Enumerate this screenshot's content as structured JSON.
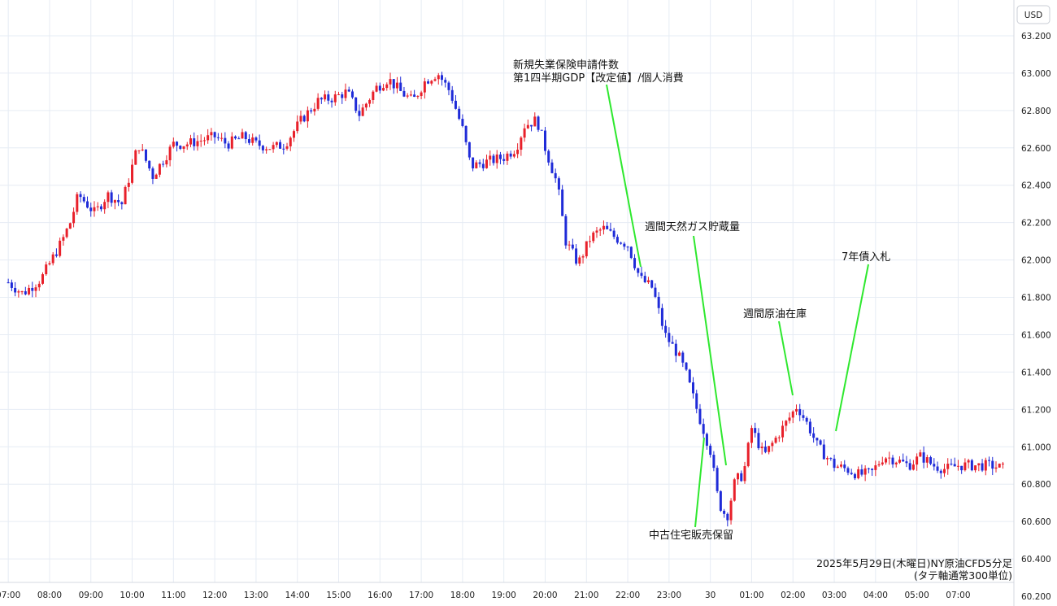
{
  "chart_data": {
    "type": "candlestick",
    "currency": "USD",
    "ylim": [
      60.2,
      63.3
    ],
    "y_ticks": [
      "60.200",
      "60.400",
      "60.600",
      "60.800",
      "61.000",
      "61.200",
      "61.400",
      "61.600",
      "61.800",
      "62.000",
      "62.200",
      "62.400",
      "62.600",
      "62.800",
      "63.000",
      "63.200"
    ],
    "x_ticks": [
      "07:00",
      "08:00",
      "09:00",
      "10:00",
      "11:00",
      "12:00",
      "13:00",
      "14:00",
      "15:00",
      "16:00",
      "17:00",
      "18:00",
      "19:00",
      "20:00",
      "21:00",
      "22:00",
      "23:00",
      "30",
      "01:00",
      "02:00",
      "03:00",
      "04:00",
      "05:00",
      "07:00"
    ],
    "x_range_hours": [
      -0.2,
      24.35
    ],
    "up_color": "#e8202a",
    "down_color": "#1f2bd8",
    "anchors": [
      [
        0.0,
        61.88
      ],
      [
        0.35,
        61.82
      ],
      [
        0.8,
        61.9
      ],
      [
        1.3,
        62.1
      ],
      [
        1.5,
        62.2
      ],
      [
        1.7,
        62.35
      ],
      [
        2.1,
        62.25
      ],
      [
        2.4,
        62.35
      ],
      [
        2.75,
        62.3
      ],
      [
        3.0,
        62.5
      ],
      [
        3.15,
        62.62
      ],
      [
        3.5,
        62.45
      ],
      [
        4.0,
        62.62
      ],
      [
        4.3,
        62.62
      ],
      [
        5.0,
        62.66
      ],
      [
        5.3,
        62.62
      ],
      [
        5.7,
        62.66
      ],
      [
        6.0,
        62.62
      ],
      [
        6.4,
        62.6
      ],
      [
        6.7,
        62.62
      ],
      [
        7.1,
        62.75
      ],
      [
        7.5,
        62.85
      ],
      [
        7.9,
        62.87
      ],
      [
        8.2,
        62.9
      ],
      [
        8.5,
        62.78
      ],
      [
        8.9,
        62.92
      ],
      [
        9.2,
        62.97
      ],
      [
        9.5,
        62.9
      ],
      [
        9.8,
        62.85
      ],
      [
        10.1,
        62.96
      ],
      [
        10.4,
        63.0
      ],
      [
        10.7,
        62.9
      ],
      [
        11.0,
        62.7
      ],
      [
        11.2,
        62.5
      ],
      [
        11.5,
        62.52
      ],
      [
        12.0,
        62.55
      ],
      [
        12.3,
        62.6
      ],
      [
        12.5,
        62.72
      ],
      [
        12.8,
        62.75
      ],
      [
        13.0,
        62.6
      ],
      [
        13.3,
        62.4
      ],
      [
        13.5,
        62.1
      ],
      [
        13.8,
        61.98
      ],
      [
        14.1,
        62.12
      ],
      [
        14.4,
        62.17
      ],
      [
        14.7,
        62.12
      ],
      [
        15.0,
        62.08
      ],
      [
        15.3,
        61.9
      ],
      [
        15.6,
        61.85
      ],
      [
        15.9,
        61.6
      ],
      [
        16.2,
        61.5
      ],
      [
        16.4,
        61.4
      ],
      [
        16.7,
        61.18
      ],
      [
        17.0,
        60.98
      ],
      [
        17.2,
        60.7
      ],
      [
        17.4,
        60.62
      ],
      [
        17.6,
        60.82
      ],
      [
        17.8,
        60.85
      ],
      [
        18.0,
        61.1
      ],
      [
        18.3,
        60.95
      ],
      [
        18.6,
        61.05
      ],
      [
        18.9,
        61.15
      ],
      [
        19.1,
        61.22
      ],
      [
        19.4,
        61.1
      ],
      [
        19.6,
        61.0
      ],
      [
        19.8,
        60.95
      ],
      [
        20.0,
        60.9
      ],
      [
        20.3,
        60.88
      ],
      [
        20.6,
        60.85
      ],
      [
        20.9,
        60.86
      ],
      [
        21.2,
        60.95
      ],
      [
        21.5,
        60.93
      ],
      [
        21.8,
        60.9
      ],
      [
        22.1,
        60.95
      ],
      [
        22.4,
        60.9
      ],
      [
        22.7,
        60.88
      ],
      [
        23.0,
        60.9
      ],
      [
        23.4,
        60.9
      ],
      [
        23.8,
        60.9
      ],
      [
        24.15,
        60.88
      ]
    ]
  },
  "annotations": {
    "jobless_claims": "新規失業保険申請件数",
    "gdp": "第1四半期GDP【改定値】/個人消費",
    "natgas": "週間天然ガス貯蔵量",
    "crude_inventories": "週間原油在庫",
    "seven_year_auction": "7年債入札",
    "pending_home_sales": "中古住宅販売保留"
  },
  "footer": {
    "line1": "2025年5月29日(木曜日)NY原油CFD5分足",
    "line2": "(タテ軸通常300単位)"
  },
  "annotation_line_color": "#2ee82e",
  "grid_color": "#e6ecf4"
}
